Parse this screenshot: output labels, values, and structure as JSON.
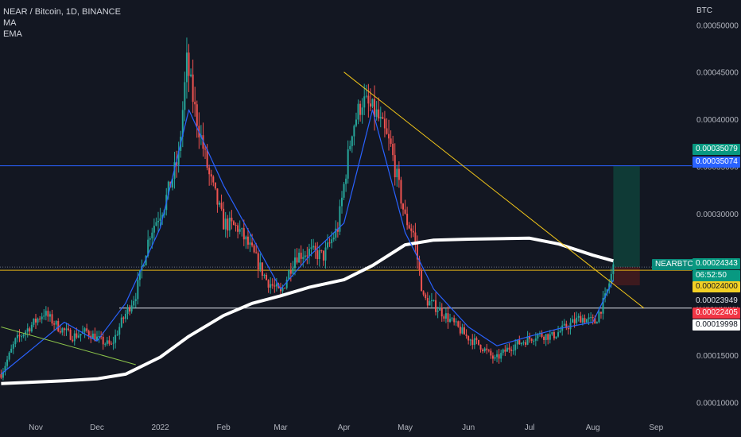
{
  "legend": {
    "title": "NEAR / Bitcoin, 1D, BINANCE",
    "ind1": "MA",
    "ind2": "EMA"
  },
  "currency": "BTC",
  "symbol": "NEARBTC",
  "countdown": "06:52:50",
  "colors": {
    "background": "#131722",
    "up": "#26a69a",
    "down": "#ef5350",
    "ma": "#ffffff",
    "ema": "#2962ff",
    "trend_yellow": "#f0c419",
    "trend_green": "#8bc34a",
    "hline_blue": "#2962ff",
    "hline_white": "#e0e3eb",
    "hline_yellow": "#e5b416",
    "zone_profit": "#0f3a36",
    "zone_loss": "#3d1a1e"
  },
  "badges": [
    {
      "text": "0.00035079",
      "bg": "#089981",
      "fg": "#ffffff"
    },
    {
      "text": "0.00035074",
      "bg": "#2962ff",
      "fg": "#ffffff"
    },
    {
      "text": "0.00024343",
      "bg": "#089981",
      "fg": "#ffffff"
    },
    {
      "text": "06:52:50",
      "bg": "#089981",
      "fg": "#ffffff"
    },
    {
      "text": "0.00024000",
      "bg": "#f2d024",
      "fg": "#131722"
    },
    {
      "text": "0.00023949",
      "bg": "#131722",
      "fg": "#e0e3eb"
    },
    {
      "text": "0.00022405",
      "bg": "#f23645",
      "fg": "#ffffff"
    },
    {
      "text": "0.00019998",
      "bg": "#ffffff",
      "fg": "#131722"
    }
  ],
  "chart_data": {
    "type": "candlestick",
    "title": "NEAR / Bitcoin, 1D, BINANCE",
    "y_unit": "BTC",
    "y_ticks": [
      "0.00010000",
      "0.00015000",
      "0.00020000",
      "0.00025000",
      "0.00030000",
      "0.00035000",
      "0.00040000",
      "0.00045000",
      "0.00050000"
    ],
    "y_tick_values": [
      0.0001,
      0.00015,
      0.0002,
      0.00025,
      0.0003,
      0.00035,
      0.0004,
      0.00045,
      0.0005
    ],
    "x_ticks": [
      "Nov",
      "Dec",
      "2022",
      "Feb",
      "Mar",
      "Apr",
      "May",
      "Jun",
      "Jul",
      "Aug",
      "Sep"
    ],
    "x_tick_dates": [
      "2021-11-01",
      "2021-12-01",
      "2022-01-01",
      "2022-02-01",
      "2022-03-01",
      "2022-04-01",
      "2022-05-01",
      "2022-06-01",
      "2022-07-01",
      "2022-08-01",
      "2022-09-01"
    ],
    "series": [
      {
        "name": "MA",
        "kind": "moving-average",
        "points": [
          [
            "2021-10-15",
            0.00012
          ],
          [
            "2021-11-15",
            0.000123
          ],
          [
            "2021-12-01",
            0.000125
          ],
          [
            "2021-12-15",
            0.00013
          ],
          [
            "2022-01-01",
            0.000148
          ],
          [
            "2022-01-15",
            0.00017
          ],
          [
            "2022-02-01",
            0.000192
          ],
          [
            "2022-02-15",
            0.000205
          ],
          [
            "2022-03-01",
            0.000213
          ],
          [
            "2022-03-15",
            0.000222
          ],
          [
            "2022-04-01",
            0.00023
          ],
          [
            "2022-04-15",
            0.000245
          ],
          [
            "2022-05-01",
            0.000267
          ],
          [
            "2022-05-15",
            0.000272
          ],
          [
            "2022-06-01",
            0.000273
          ],
          [
            "2022-07-01",
            0.000274
          ],
          [
            "2022-07-15",
            0.000268
          ],
          [
            "2022-08-01",
            0.000256
          ],
          [
            "2022-08-11",
            0.00025
          ]
        ]
      },
      {
        "name": "EMA",
        "kind": "moving-average",
        "points": [
          [
            "2021-10-15",
            0.00013
          ],
          [
            "2021-11-01",
            0.00016
          ],
          [
            "2021-11-15",
            0.000185
          ],
          [
            "2021-12-01",
            0.000165
          ],
          [
            "2021-12-15",
            0.000205
          ],
          [
            "2022-01-01",
            0.000285
          ],
          [
            "2022-01-15",
            0.00041
          ],
          [
            "2022-02-01",
            0.00033
          ],
          [
            "2022-02-15",
            0.000275
          ],
          [
            "2022-03-01",
            0.00022
          ],
          [
            "2022-03-15",
            0.000255
          ],
          [
            "2022-04-01",
            0.00029
          ],
          [
            "2022-04-15",
            0.00041
          ],
          [
            "2022-05-01",
            0.00028
          ],
          [
            "2022-05-15",
            0.00022
          ],
          [
            "2022-06-01",
            0.00018
          ],
          [
            "2022-06-15",
            0.00016
          ],
          [
            "2022-07-01",
            0.00017
          ],
          [
            "2022-07-15",
            0.000178
          ],
          [
            "2022-08-01",
            0.000185
          ],
          [
            "2022-08-11",
            0.00023
          ]
        ]
      }
    ],
    "price_path": [
      [
        "2021-10-15",
        0.00013
      ],
      [
        "2021-10-22",
        0.000165
      ],
      [
        "2021-10-29",
        0.00018
      ],
      [
        "2021-11-05",
        0.000195
      ],
      [
        "2021-11-12",
        0.00018
      ],
      [
        "2021-11-19",
        0.00017
      ],
      [
        "2021-11-26",
        0.000175
      ],
      [
        "2021-12-03",
        0.000165
      ],
      [
        "2021-12-08",
        0.00016
      ],
      [
        "2021-12-13",
        0.000185
      ],
      [
        "2021-12-20",
        0.000215
      ],
      [
        "2021-12-27",
        0.00028
      ],
      [
        "2022-01-03",
        0.00031
      ],
      [
        "2022-01-10",
        0.00036
      ],
      [
        "2022-01-14",
        0.00046
      ],
      [
        "2022-01-18",
        0.00041
      ],
      [
        "2022-01-25",
        0.00034
      ],
      [
        "2022-02-01",
        0.00029
      ],
      [
        "2022-02-08",
        0.000285
      ],
      [
        "2022-02-15",
        0.00026
      ],
      [
        "2022-02-22",
        0.00023
      ],
      [
        "2022-03-01",
        0.000215
      ],
      [
        "2022-03-08",
        0.000255
      ],
      [
        "2022-03-15",
        0.00026
      ],
      [
        "2022-03-22",
        0.000255
      ],
      [
        "2022-03-29",
        0.000285
      ],
      [
        "2022-04-05",
        0.00039
      ],
      [
        "2022-04-10",
        0.00042
      ],
      [
        "2022-04-17",
        0.000405
      ],
      [
        "2022-04-24",
        0.00037
      ],
      [
        "2022-05-01",
        0.000295
      ],
      [
        "2022-05-05",
        0.00028
      ],
      [
        "2022-05-10",
        0.00021
      ],
      [
        "2022-05-17",
        0.0002
      ],
      [
        "2022-05-24",
        0.000185
      ],
      [
        "2022-05-31",
        0.00017
      ],
      [
        "2022-06-07",
        0.00016
      ],
      [
        "2022-06-14",
        0.000145
      ],
      [
        "2022-06-21",
        0.000158
      ],
      [
        "2022-06-28",
        0.000165
      ],
      [
        "2022-07-05",
        0.000172
      ],
      [
        "2022-07-12",
        0.00017
      ],
      [
        "2022-07-19",
        0.00018
      ],
      [
        "2022-07-26",
        0.00019
      ],
      [
        "2022-08-02",
        0.000185
      ],
      [
        "2022-08-07",
        0.00021
      ],
      [
        "2022-08-11",
        0.000243
      ]
    ],
    "last_price": 0.00024343,
    "horizontal_lines": [
      {
        "name": "resistance-blue",
        "value": 0.00035074
      },
      {
        "name": "level-yellow",
        "value": 0.00024
      },
      {
        "name": "support-white",
        "value": 0.00019998
      }
    ],
    "trendlines": [
      {
        "name": "downtrend-yellow",
        "from": [
          "2022-04-01",
          0.00045
        ],
        "to": [
          "2022-08-26",
          0.0002
        ]
      },
      {
        "name": "downtrend-green",
        "from": [
          "2021-10-15",
          0.00018
        ],
        "to": [
          "2021-12-20",
          0.00014
        ]
      }
    ],
    "position": {
      "entry": 0.00024343,
      "target": 0.00035079,
      "stop": 0.00022405
    },
    "grid": false,
    "legend_position": "top-left"
  }
}
